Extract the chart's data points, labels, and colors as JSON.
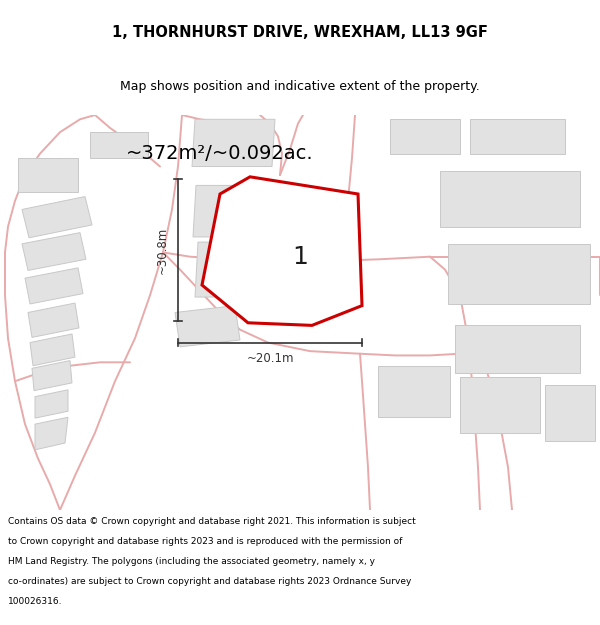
{
  "title_line1": "1, THORNHURST DRIVE, WREXHAM, LL13 9GF",
  "title_line2": "Map shows position and indicative extent of the property.",
  "area_label": "~372m²/~0.092ac.",
  "plot_number": "1",
  "dim_height": "~30.8m",
  "dim_width": "~20.1m",
  "footer": "Contains OS data © Crown copyright and database right 2021. This information is subject to Crown copyright and database rights 2023 and is reproduced with the permission of HM Land Registry. The polygons (including the associated geometry, namely x, y co-ordinates) are subject to Crown copyright and database rights 2023 Ordnance Survey 100026316.",
  "bg_color": "#ffffff",
  "map_bg": "#f5f5f5",
  "building_fill": "#e2e2e2",
  "building_edge": "#c8c8c8",
  "road_color": "#e8aaaa",
  "plot_fill": "#ffffff",
  "plot_edge": "#cc0000",
  "dim_color": "#333333",
  "title_fontsize": 10.5,
  "subtitle_fontsize": 9,
  "area_fontsize": 14,
  "plot_num_fontsize": 18,
  "dim_fontsize": 8.5,
  "footer_fontsize": 6.5
}
